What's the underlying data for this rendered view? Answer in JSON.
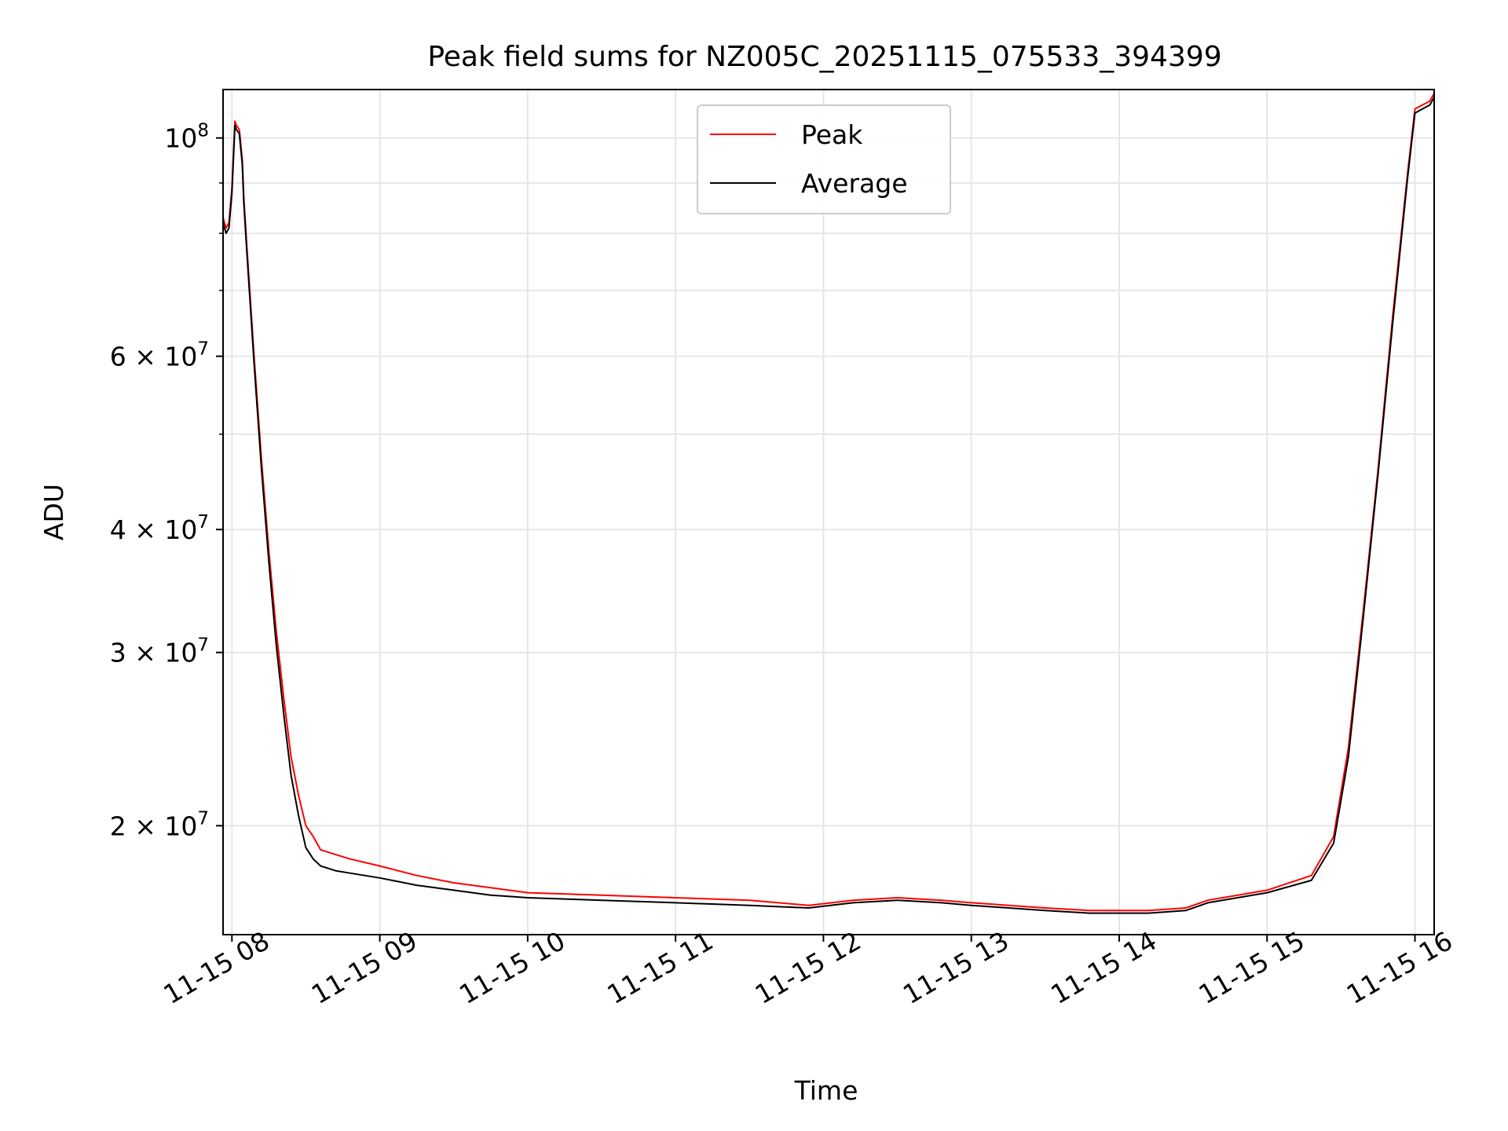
{
  "chart_data": {
    "type": "line",
    "title": "Peak field sums for NZ005C_20251115_075533_394399",
    "xlabel": "Time",
    "ylabel": "ADU",
    "yscale": "log",
    "ylim": [
      15500000,
      112000000
    ],
    "xlim_hours": [
      7.94,
      16.13
    ],
    "grid": true,
    "legend_position": "upper center",
    "x_ticks": [
      {
        "hour": 8,
        "label": "11-15 08"
      },
      {
        "hour": 9,
        "label": "11-15 09"
      },
      {
        "hour": 10,
        "label": "11-15 10"
      },
      {
        "hour": 11,
        "label": "11-15 11"
      },
      {
        "hour": 12,
        "label": "11-15 12"
      },
      {
        "hour": 13,
        "label": "11-15 13"
      },
      {
        "hour": 14,
        "label": "11-15 14"
      },
      {
        "hour": 15,
        "label": "11-15 15"
      },
      {
        "hour": 16,
        "label": "11-15 16"
      }
    ],
    "y_ticks": [
      {
        "value": 100000000,
        "mantissa": "10",
        "exponent": "8"
      },
      {
        "value": 60000000,
        "mantissa": "6 × 10",
        "exponent": "7"
      },
      {
        "value": 40000000,
        "mantissa": "4 × 10",
        "exponent": "7"
      },
      {
        "value": 30000000,
        "mantissa": "3 × 10",
        "exponent": "7"
      },
      {
        "value": 20000000,
        "mantissa": "2 × 10",
        "exponent": "7"
      }
    ],
    "y_minor_ticks": [
      50000000,
      70000000,
      80000000,
      90000000
    ],
    "series": [
      {
        "name": "Peak",
        "color": "#ff0000",
        "x_hours": [
          7.94,
          7.96,
          7.98,
          8.0,
          8.02,
          8.03,
          8.05,
          8.07,
          8.08,
          8.1,
          8.15,
          8.2,
          8.25,
          8.3,
          8.35,
          8.4,
          8.45,
          8.5,
          8.55,
          8.6,
          8.7,
          8.8,
          9.0,
          9.25,
          9.5,
          9.75,
          10.0,
          10.5,
          11.0,
          11.5,
          11.9,
          12.2,
          12.5,
          12.8,
          13.0,
          13.5,
          13.8,
          14.2,
          14.45,
          14.6,
          15.0,
          15.3,
          15.45,
          15.55,
          15.65,
          15.75,
          15.85,
          15.95,
          16.0,
          16.05,
          16.1,
          16.13
        ],
        "values": [
          83000000,
          81000000,
          82000000,
          89000000,
          104000000,
          103000000,
          102000000,
          95000000,
          87000000,
          78000000,
          60000000,
          47000000,
          38000000,
          31500000,
          27000000,
          23500000,
          21500000,
          20000000,
          19500000,
          18900000,
          18700000,
          18500000,
          18200000,
          17800000,
          17500000,
          17300000,
          17100000,
          17000000,
          16900000,
          16800000,
          16600000,
          16800000,
          16900000,
          16800000,
          16700000,
          16500000,
          16400000,
          16400000,
          16500000,
          16800000,
          17200000,
          17800000,
          19500000,
          24000000,
          33000000,
          46000000,
          66000000,
          92000000,
          107000000,
          108000000,
          109000000,
          111000000
        ]
      },
      {
        "name": "Average",
        "color": "#000000",
        "x_hours": [
          7.94,
          7.96,
          7.98,
          8.0,
          8.02,
          8.03,
          8.05,
          8.07,
          8.08,
          8.1,
          8.15,
          8.2,
          8.25,
          8.3,
          8.35,
          8.4,
          8.45,
          8.5,
          8.55,
          8.6,
          8.7,
          8.8,
          9.0,
          9.25,
          9.5,
          9.75,
          10.0,
          10.5,
          11.0,
          11.5,
          11.9,
          12.2,
          12.5,
          12.8,
          13.0,
          13.5,
          13.8,
          14.2,
          14.45,
          14.6,
          15.0,
          15.3,
          15.45,
          15.55,
          15.65,
          15.75,
          15.85,
          15.95,
          16.0,
          16.05,
          16.1,
          16.13
        ],
        "values": [
          82000000,
          80000000,
          81000000,
          88000000,
          103000000,
          102000000,
          101000000,
          94000000,
          86000000,
          77000000,
          59000000,
          46000000,
          37000000,
          30500000,
          26000000,
          22500000,
          20500000,
          19000000,
          18500000,
          18200000,
          18000000,
          17900000,
          17700000,
          17400000,
          17200000,
          17000000,
          16900000,
          16800000,
          16700000,
          16600000,
          16500000,
          16700000,
          16800000,
          16700000,
          16600000,
          16400000,
          16300000,
          16300000,
          16400000,
          16700000,
          17100000,
          17600000,
          19200000,
          23500000,
          32500000,
          45500000,
          65000000,
          91000000,
          106000000,
          107000000,
          108000000,
          110000000
        ]
      }
    ]
  }
}
